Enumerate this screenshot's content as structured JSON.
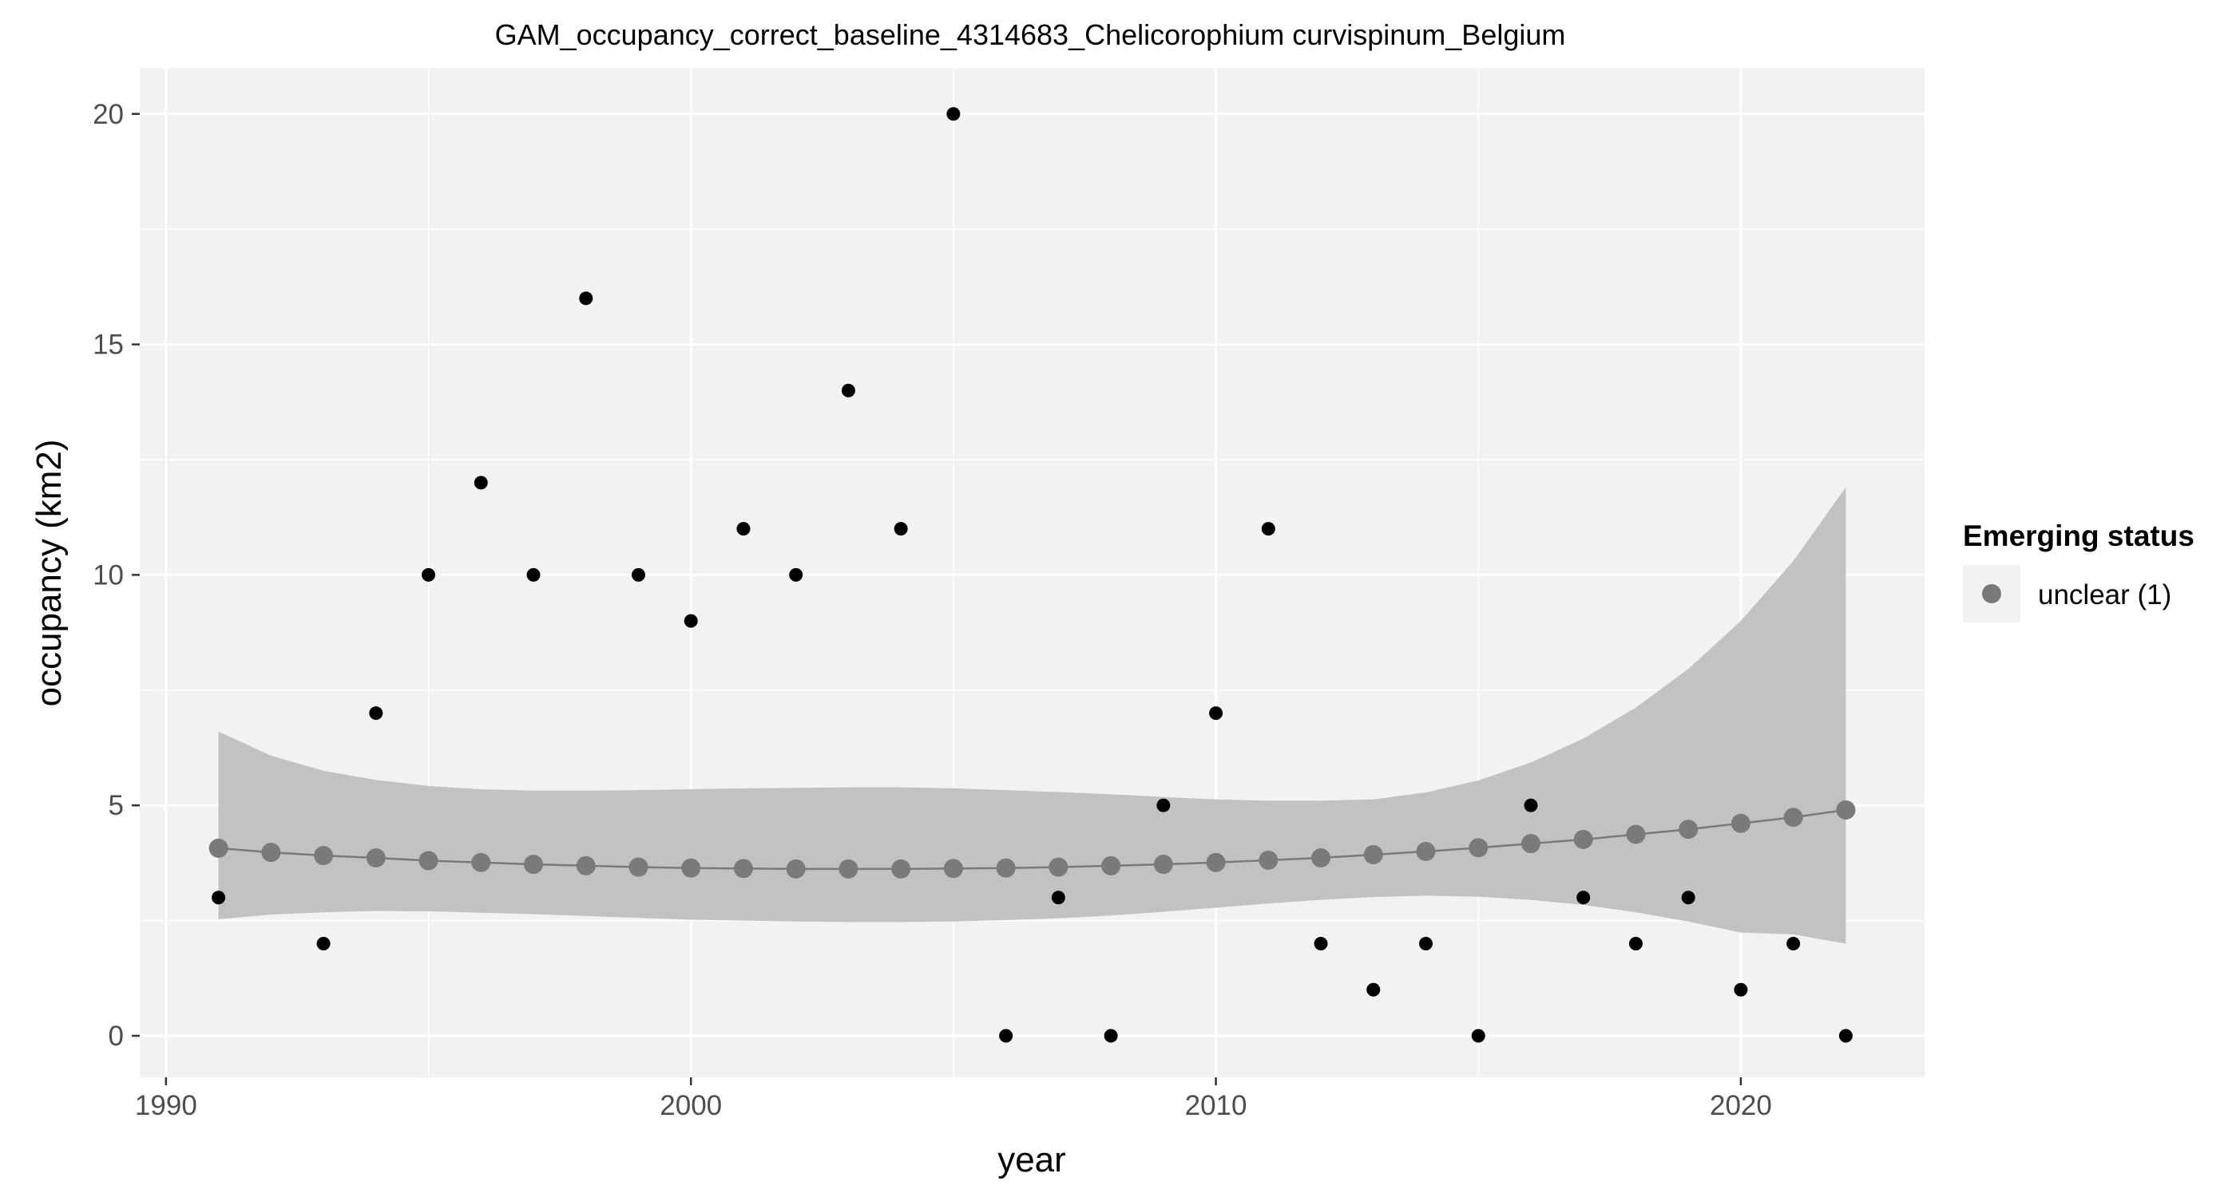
{
  "chart_data": {
    "type": "scatter",
    "title": "GAM_occupancy_correct_baseline_4314683_Chelicorophium curvispinum_Belgium",
    "xlabel": "year",
    "ylabel": "occupancy (km2)",
    "xlim": [
      1989.5,
      2023.5
    ],
    "ylim": [
      -0.9,
      21.0
    ],
    "x_ticks": [
      1990,
      2000,
      2010,
      2020
    ],
    "y_ticks": [
      0,
      5,
      10,
      15,
      20
    ],
    "grid": true,
    "legend": {
      "title": "Emerging status",
      "position": "right",
      "items": [
        {
          "label": "unclear (1)",
          "color": "#7a7a7a"
        }
      ]
    },
    "observed": {
      "color": "#000000",
      "x": [
        1991,
        1993,
        1994,
        1995,
        1996,
        1997,
        1998,
        1999,
        2000,
        2001,
        2002,
        2003,
        2004,
        2005,
        2006,
        2007,
        2008,
        2009,
        2010,
        2011,
        2012,
        2013,
        2014,
        2015,
        2016,
        2017,
        2018,
        2019,
        2020,
        2021,
        2022
      ],
      "y": [
        3,
        2,
        7,
        10,
        12,
        10,
        16,
        10,
        9,
        11,
        10,
        14,
        11,
        20,
        0,
        3,
        0,
        5,
        7,
        11,
        2,
        1,
        2,
        0,
        5,
        3,
        2,
        3,
        1,
        2,
        0
      ]
    },
    "fitted": {
      "color": "#7a7a7a",
      "x": [
        1991,
        1992,
        1993,
        1994,
        1995,
        1996,
        1997,
        1998,
        1999,
        2000,
        2001,
        2002,
        2003,
        2004,
        2005,
        2006,
        2007,
        2008,
        2009,
        2010,
        2011,
        2012,
        2013,
        2014,
        2015,
        2016,
        2017,
        2018,
        2019,
        2020,
        2021,
        2022
      ],
      "y": [
        4.07,
        3.98,
        3.91,
        3.86,
        3.8,
        3.76,
        3.72,
        3.69,
        3.66,
        3.64,
        3.63,
        3.62,
        3.62,
        3.62,
        3.63,
        3.64,
        3.66,
        3.69,
        3.72,
        3.76,
        3.81,
        3.86,
        3.93,
        4.0,
        4.08,
        4.17,
        4.26,
        4.37,
        4.48,
        4.61,
        4.74,
        4.9
      ]
    },
    "confidence_band": {
      "color": "#bdbdbd",
      "x": [
        1991,
        1992,
        1993,
        1994,
        1995,
        1996,
        1997,
        1998,
        1999,
        2000,
        2001,
        2002,
        2003,
        2004,
        2005,
        2006,
        2007,
        2008,
        2009,
        2010,
        2011,
        2012,
        2013,
        2014,
        2015,
        2016,
        2017,
        2018,
        2019,
        2020,
        2021,
        2022
      ],
      "lower": [
        2.53,
        2.63,
        2.68,
        2.71,
        2.7,
        2.67,
        2.64,
        2.6,
        2.56,
        2.52,
        2.5,
        2.48,
        2.47,
        2.47,
        2.48,
        2.51,
        2.55,
        2.61,
        2.69,
        2.78,
        2.87,
        2.95,
        3.01,
        3.04,
        3.02,
        2.95,
        2.84,
        2.68,
        2.48,
        2.24,
        2.2,
        2.0
      ],
      "upper": [
        6.6,
        6.08,
        5.75,
        5.55,
        5.42,
        5.35,
        5.32,
        5.32,
        5.33,
        5.35,
        5.37,
        5.38,
        5.39,
        5.39,
        5.37,
        5.33,
        5.29,
        5.24,
        5.18,
        5.13,
        5.1,
        5.1,
        5.13,
        5.28,
        5.54,
        5.93,
        6.45,
        7.12,
        7.96,
        9.0,
        10.3,
        11.9
      ]
    }
  }
}
